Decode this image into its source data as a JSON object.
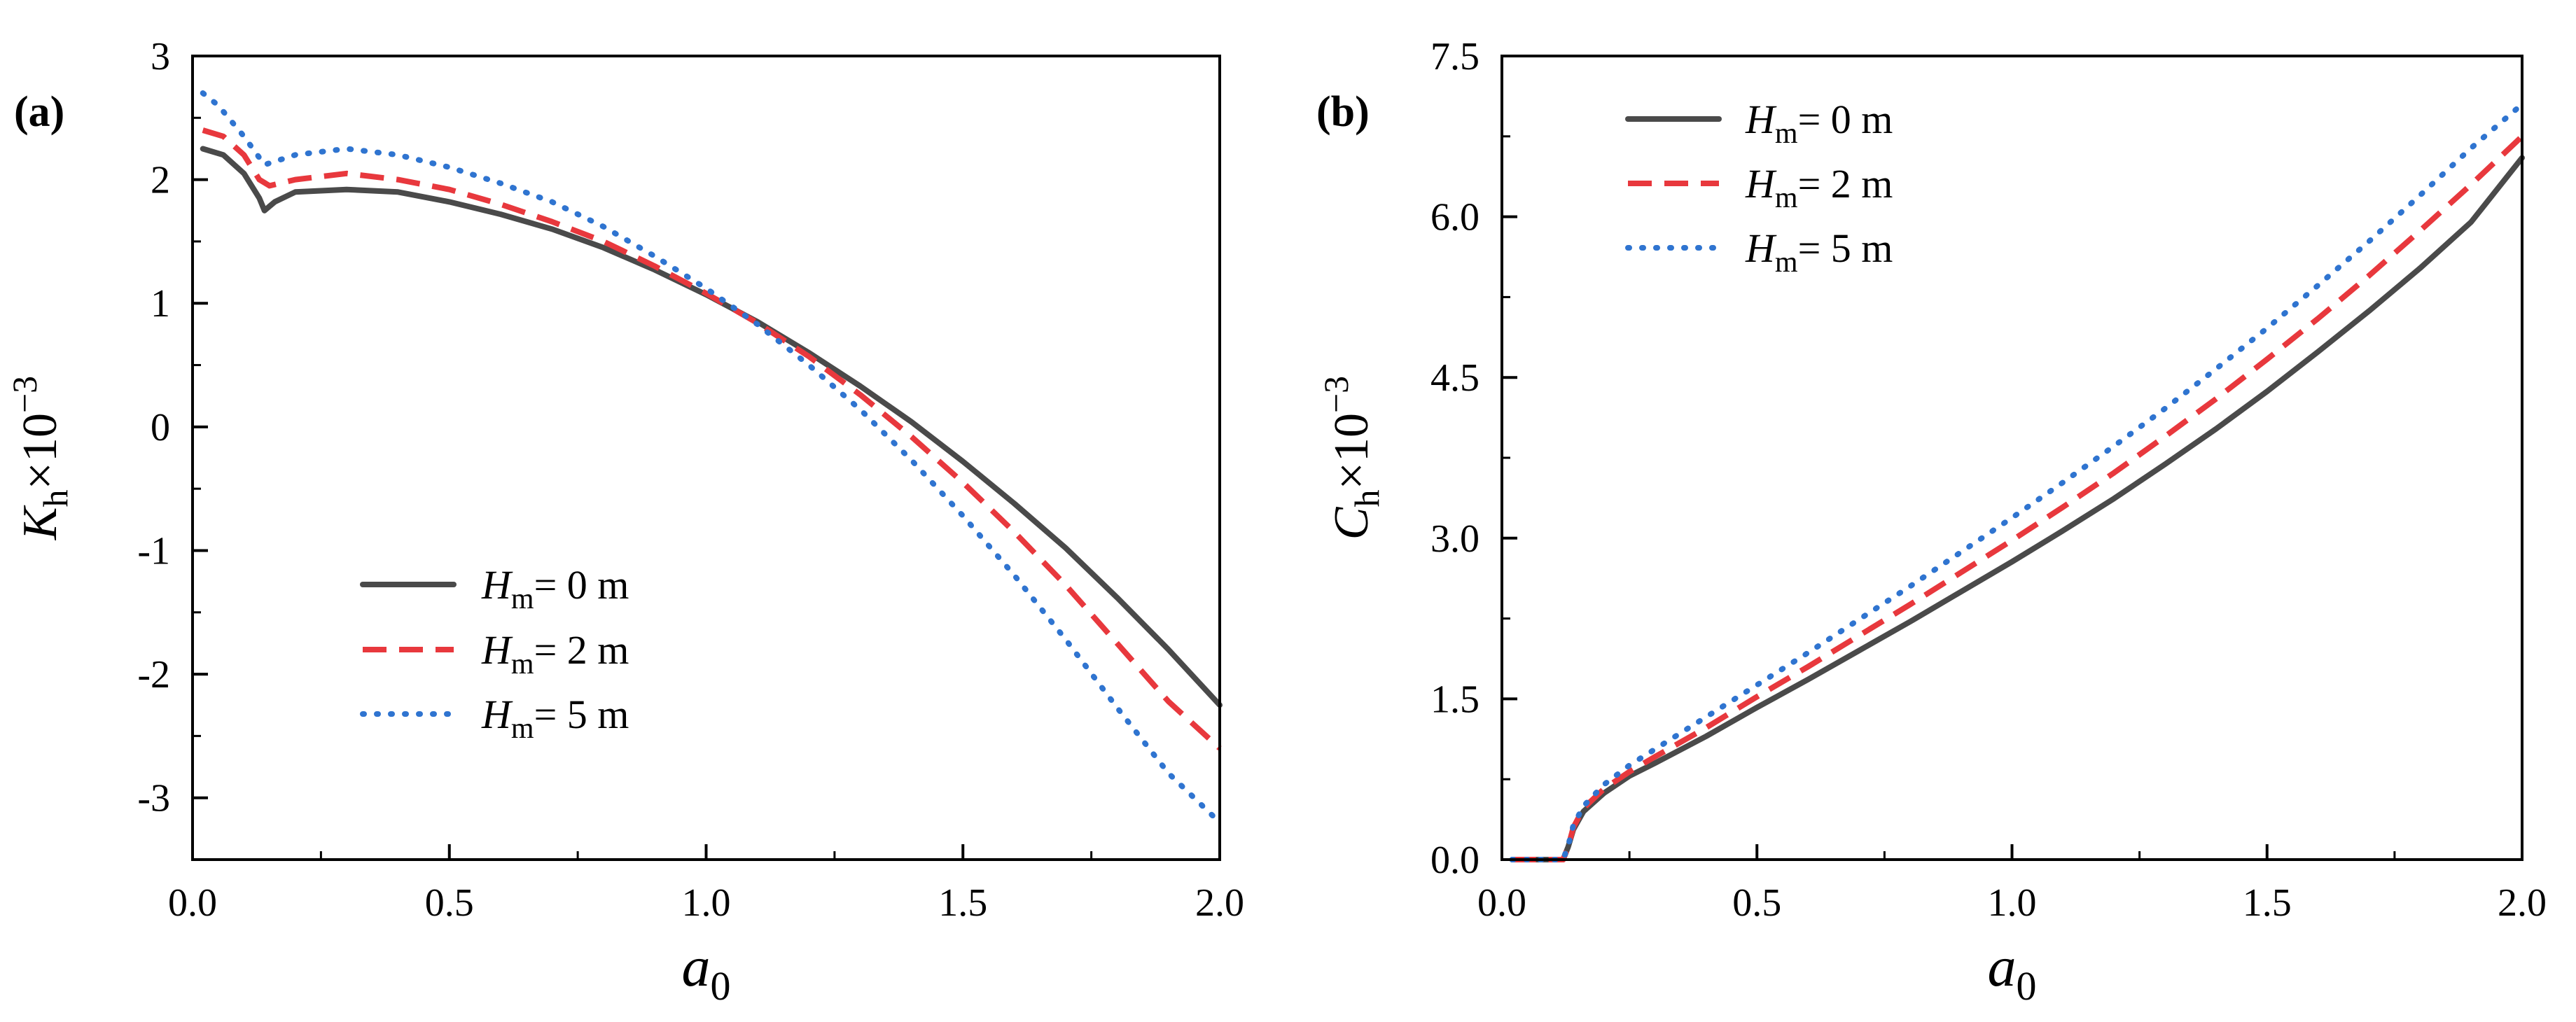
{
  "colors": {
    "axis": "#000000",
    "series_0": "#4a4a4a",
    "series_1": "#e8383d",
    "series_2": "#2f74d0"
  },
  "chart_data": [
    {
      "type": "line",
      "panel_label": "(a)",
      "title": "",
      "xlabel": {
        "main": "a",
        "sub": "0"
      },
      "ylabel": {
        "main": "K",
        "sub": "h",
        "suffix": "×10",
        "sup": "−3"
      },
      "xlim": [
        0.0,
        2.0
      ],
      "ylim": [
        -3.5,
        3.0
      ],
      "xticks": [
        0.0,
        0.5,
        1.0,
        1.5,
        2.0
      ],
      "xtick_labels": [
        "0.0",
        "0.5",
        "1.0",
        "1.5",
        "2.0"
      ],
      "yticks": [
        -3,
        -2,
        -1,
        0,
        1,
        2,
        3
      ],
      "ytick_labels": [
        "-3",
        "-2",
        "-1",
        "0",
        "1",
        "2",
        "3"
      ],
      "grid": false,
      "legend_position": "lower-left",
      "series": [
        {
          "name": "H_m = 0 m",
          "legend": {
            "main": "H",
            "sub": "m",
            "rest": "= 0 m"
          },
          "style": "solid",
          "x": [
            0.02,
            0.06,
            0.1,
            0.13,
            0.14,
            0.16,
            0.2,
            0.3,
            0.4,
            0.5,
            0.6,
            0.7,
            0.8,
            0.9,
            1.0,
            1.1,
            1.2,
            1.3,
            1.4,
            1.5,
            1.6,
            1.7,
            1.8,
            1.9,
            2.0
          ],
          "y": [
            2.25,
            2.2,
            2.05,
            1.85,
            1.75,
            1.82,
            1.9,
            1.92,
            1.9,
            1.82,
            1.72,
            1.6,
            1.45,
            1.27,
            1.07,
            0.85,
            0.6,
            0.33,
            0.04,
            -0.28,
            -0.62,
            -0.98,
            -1.38,
            -1.8,
            -2.25
          ]
        },
        {
          "name": "H_m = 2 m",
          "legend": {
            "main": "H",
            "sub": "m",
            "rest": "= 2 m"
          },
          "style": "dashed",
          "x": [
            0.02,
            0.06,
            0.1,
            0.13,
            0.15,
            0.2,
            0.3,
            0.4,
            0.5,
            0.6,
            0.7,
            0.8,
            0.9,
            1.0,
            1.1,
            1.2,
            1.3,
            1.4,
            1.5,
            1.6,
            1.7,
            1.8,
            1.9,
            2.0
          ],
          "y": [
            2.4,
            2.35,
            2.2,
            2.0,
            1.95,
            2.0,
            2.05,
            2.0,
            1.92,
            1.8,
            1.66,
            1.5,
            1.3,
            1.08,
            0.84,
            0.57,
            0.26,
            -0.08,
            -0.45,
            -0.85,
            -1.28,
            -1.75,
            -2.22,
            -2.6
          ]
        },
        {
          "name": "H_m = 5 m",
          "legend": {
            "main": "H",
            "sub": "m",
            "rest": "= 5 m"
          },
          "style": "dotted",
          "x": [
            0.02,
            0.05,
            0.1,
            0.14,
            0.2,
            0.3,
            0.4,
            0.5,
            0.6,
            0.7,
            0.8,
            0.9,
            1.0,
            1.1,
            1.2,
            1.3,
            1.4,
            1.5,
            1.6,
            1.7,
            1.8,
            1.9,
            2.0
          ],
          "y": [
            2.7,
            2.6,
            2.35,
            2.12,
            2.2,
            2.25,
            2.2,
            2.1,
            1.97,
            1.82,
            1.62,
            1.38,
            1.12,
            0.83,
            0.5,
            0.14,
            -0.27,
            -0.72,
            -1.2,
            -1.72,
            -2.27,
            -2.8,
            -3.2
          ]
        }
      ]
    },
    {
      "type": "line",
      "panel_label": "(b)",
      "title": "",
      "xlabel": {
        "main": "a",
        "sub": "0"
      },
      "ylabel": {
        "main": "C",
        "sub": "h",
        "suffix": "×10",
        "sup": "−3"
      },
      "xlim": [
        0.0,
        2.0
      ],
      "ylim": [
        0.0,
        7.5
      ],
      "xticks": [
        0.0,
        0.5,
        1.0,
        1.5,
        2.0
      ],
      "xtick_labels": [
        "0.0",
        "0.5",
        "1.0",
        "1.5",
        "2.0"
      ],
      "yticks": [
        0.0,
        1.5,
        3.0,
        4.5,
        6.0,
        7.5
      ],
      "ytick_labels": [
        "0.0",
        "1.5",
        "3.0",
        "4.5",
        "6.0",
        "7.5"
      ],
      "grid": false,
      "legend_position": "top-left",
      "series": [
        {
          "name": "H_m = 0 m",
          "legend": {
            "main": "H",
            "sub": "m",
            "rest": "= 0 m"
          },
          "style": "solid",
          "x": [
            0.02,
            0.12,
            0.13,
            0.14,
            0.16,
            0.2,
            0.25,
            0.3,
            0.4,
            0.5,
            0.6,
            0.7,
            0.8,
            0.9,
            1.0,
            1.1,
            1.2,
            1.3,
            1.4,
            1.5,
            1.6,
            1.7,
            1.8,
            1.9,
            2.0
          ],
          "y": [
            0.0,
            0.0,
            0.12,
            0.28,
            0.45,
            0.62,
            0.78,
            0.9,
            1.15,
            1.42,
            1.68,
            1.95,
            2.22,
            2.5,
            2.78,
            3.07,
            3.37,
            3.69,
            4.02,
            4.37,
            4.74,
            5.12,
            5.52,
            5.95,
            6.55
          ]
        },
        {
          "name": "H_m = 2 m",
          "legend": {
            "main": "H",
            "sub": "m",
            "rest": "= 2 m"
          },
          "style": "dashed",
          "x": [
            0.02,
            0.12,
            0.13,
            0.14,
            0.16,
            0.2,
            0.25,
            0.3,
            0.4,
            0.5,
            0.6,
            0.7,
            0.8,
            0.9,
            1.0,
            1.1,
            1.2,
            1.3,
            1.4,
            1.5,
            1.6,
            1.7,
            1.8,
            1.9,
            2.0
          ],
          "y": [
            0.0,
            0.0,
            0.12,
            0.3,
            0.48,
            0.66,
            0.82,
            0.96,
            1.23,
            1.52,
            1.8,
            2.09,
            2.38,
            2.68,
            2.98,
            3.29,
            3.61,
            3.95,
            4.3,
            4.67,
            5.05,
            5.45,
            5.87,
            6.3,
            6.75
          ]
        },
        {
          "name": "H_m = 5 m",
          "legend": {
            "main": "H",
            "sub": "m",
            "rest": "= 5 m"
          },
          "style": "dotted",
          "x": [
            0.02,
            0.12,
            0.13,
            0.14,
            0.16,
            0.2,
            0.25,
            0.3,
            0.4,
            0.5,
            0.6,
            0.7,
            0.8,
            0.9,
            1.0,
            1.1,
            1.2,
            1.3,
            1.4,
            1.5,
            1.6,
            1.7,
            1.8,
            1.9,
            2.0
          ],
          "y": [
            0.0,
            0.0,
            0.13,
            0.32,
            0.5,
            0.7,
            0.88,
            1.03,
            1.33,
            1.63,
            1.93,
            2.24,
            2.55,
            2.87,
            3.19,
            3.52,
            3.86,
            4.21,
            4.58,
            4.96,
            5.36,
            5.77,
            6.2,
            6.64,
            7.05
          ]
        }
      ]
    }
  ]
}
